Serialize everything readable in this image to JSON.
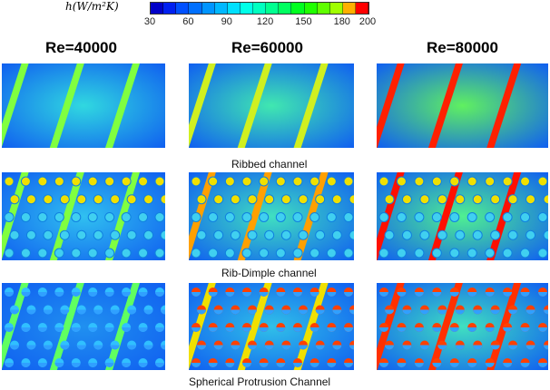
{
  "colorbar": {
    "title": "h(W/m²K)",
    "range": [
      30,
      200
    ],
    "ticks": [
      "30",
      "60",
      "90",
      "120",
      "150",
      "180",
      "200"
    ],
    "colors": [
      "#0000c8",
      "#0020f0",
      "#0050ff",
      "#0070ff",
      "#0095ff",
      "#00b8ff",
      "#00e0ff",
      "#00ffe8",
      "#00ffc0",
      "#00ff90",
      "#00ff60",
      "#00ff20",
      "#20ff00",
      "#60ff00",
      "#a0ff00",
      "#ffb000",
      "#ff0000"
    ]
  },
  "columns": [
    "Re=40000",
    "Re=60000",
    "Re=80000"
  ],
  "rows": [
    "Ribbed channel",
    "Rib-Dimple channel",
    "Spherical Protrusion Channel"
  ]
}
